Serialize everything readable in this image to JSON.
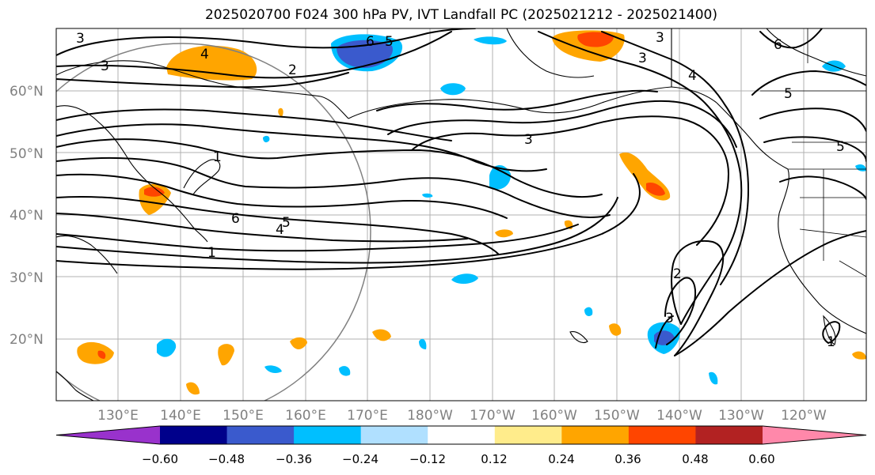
{
  "title": "2025020700 F024 300 hPa PV, IVT Landfall PC (2025021212 - 2025021400)",
  "axes": {
    "lat_labels": [
      "20°N",
      "30°N",
      "40°N",
      "50°N",
      "60°N"
    ],
    "lon_labels": [
      "130°E",
      "140°E",
      "150°E",
      "160°E",
      "170°E",
      "180°W",
      "170°W",
      "160°W",
      "150°W",
      "140°W",
      "130°W",
      "120°W"
    ]
  },
  "colorbar": {
    "tick_labels": [
      "−0.60",
      "−0.48",
      "−0.36",
      "−0.24",
      "−0.12",
      "0.12",
      "0.24",
      "0.36",
      "0.48",
      "0.60"
    ],
    "bins": [
      {
        "color": "#9932cc"
      },
      {
        "color": "#00008b"
      },
      {
        "color": "#3a5acd"
      },
      {
        "color": "#00bfff"
      },
      {
        "color": "#b0e0ff"
      },
      {
        "color": "#ffffff"
      },
      {
        "color": "#ffec8b"
      },
      {
        "color": "#ffa500"
      },
      {
        "color": "#ff4500"
      },
      {
        "color": "#b22222"
      },
      {
        "color": "#ff88aa"
      }
    ]
  },
  "contour_labels": [
    {
      "text": "3"
    },
    {
      "text": "3"
    },
    {
      "text": "4"
    },
    {
      "text": "2"
    },
    {
      "text": "6"
    },
    {
      "text": "5"
    },
    {
      "text": "1"
    },
    {
      "text": "6"
    },
    {
      "text": "5"
    },
    {
      "text": "4"
    },
    {
      "text": "1"
    },
    {
      "text": "3"
    },
    {
      "text": "3"
    },
    {
      "text": "3"
    },
    {
      "text": "4"
    },
    {
      "text": "6"
    },
    {
      "text": "5"
    },
    {
      "text": "5"
    },
    {
      "text": "2"
    },
    {
      "text": "3"
    },
    {
      "text": "1"
    }
  ]
}
